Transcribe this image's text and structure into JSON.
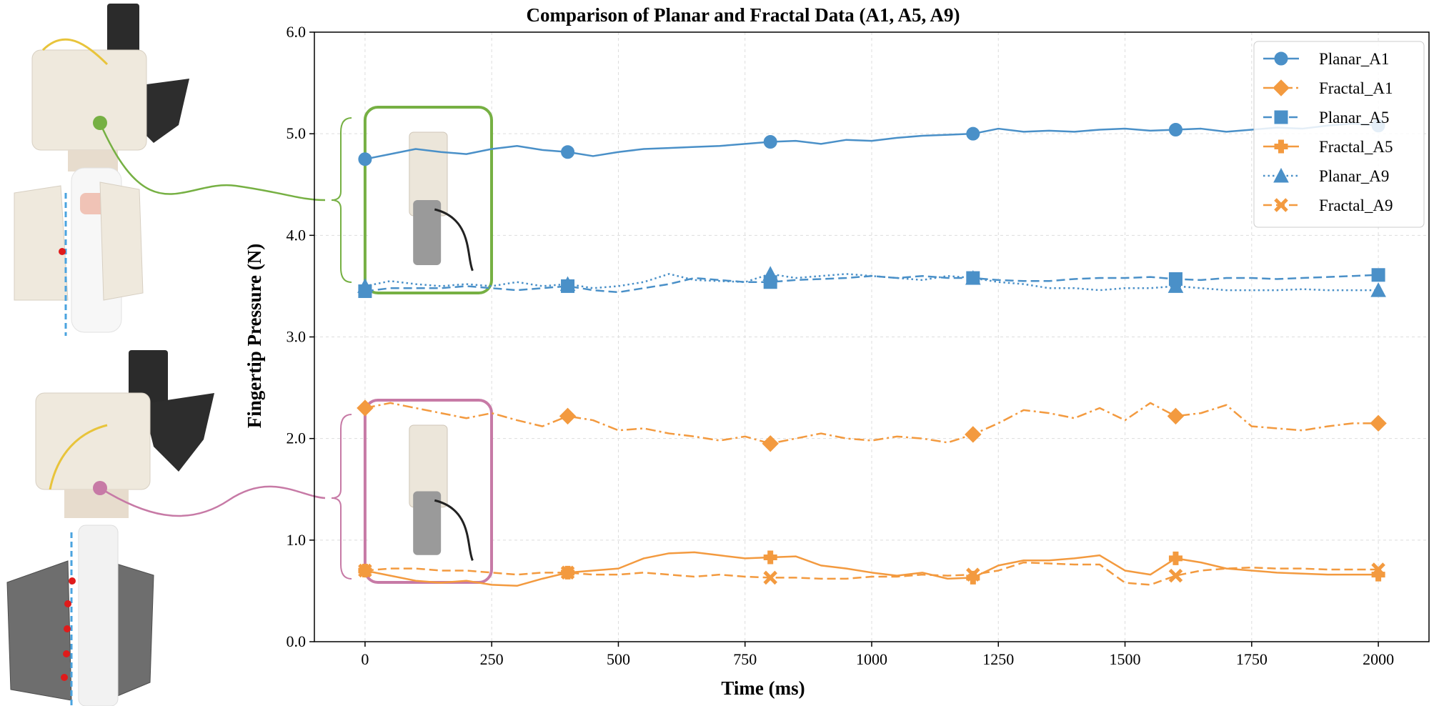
{
  "chart_data": {
    "type": "line",
    "title": "Comparison of Planar and Fractal Data (A1, A5, A9)",
    "xlabel": "Time (ms)",
    "ylabel": "Fingertip Pressure (N)",
    "xlim": [
      -100,
      2100
    ],
    "ylim": [
      0,
      6
    ],
    "x_ticks": [
      0,
      250,
      500,
      750,
      1000,
      1250,
      1500,
      1750,
      2000
    ],
    "y_ticks": [
      "0.0",
      "1.0",
      "2.0",
      "3.0",
      "4.0",
      "5.0",
      "6.0"
    ],
    "grid": true,
    "legend_position": "top-right",
    "marker_x": [
      0,
      400,
      800,
      1200,
      1600,
      2000
    ],
    "series": [
      {
        "name": "Planar_A1",
        "color": "#4a90c8",
        "linestyle": "solid",
        "marker": "circle",
        "x": [
          0,
          50,
          100,
          150,
          200,
          250,
          300,
          350,
          400,
          450,
          500,
          550,
          600,
          650,
          700,
          750,
          800,
          850,
          900,
          950,
          1000,
          1050,
          1100,
          1150,
          1200,
          1250,
          1300,
          1350,
          1400,
          1450,
          1500,
          1550,
          1600,
          1650,
          1700,
          1750,
          1800,
          1850,
          1900,
          1950,
          2000
        ],
        "values": [
          4.75,
          4.8,
          4.85,
          4.82,
          4.8,
          4.85,
          4.88,
          4.84,
          4.82,
          4.78,
          4.82,
          4.85,
          4.86,
          4.87,
          4.88,
          4.9,
          4.92,
          4.93,
          4.9,
          4.94,
          4.93,
          4.96,
          4.98,
          4.99,
          5.0,
          5.05,
          5.02,
          5.03,
          5.02,
          5.04,
          5.05,
          5.03,
          5.04,
          5.05,
          5.02,
          5.04,
          5.06,
          5.05,
          5.08,
          5.1,
          5.08
        ]
      },
      {
        "name": "Fractal_A1",
        "color": "#f39a3f",
        "linestyle": "dashdot",
        "marker": "diamond",
        "x": [
          0,
          50,
          100,
          150,
          200,
          250,
          300,
          350,
          400,
          450,
          500,
          550,
          600,
          650,
          700,
          750,
          800,
          850,
          900,
          950,
          1000,
          1050,
          1100,
          1150,
          1200,
          1250,
          1300,
          1350,
          1400,
          1450,
          1500,
          1550,
          1600,
          1650,
          1700,
          1750,
          1800,
          1850,
          1900,
          1950,
          2000
        ],
        "values": [
          2.3,
          2.35,
          2.3,
          2.25,
          2.2,
          2.25,
          2.18,
          2.12,
          2.22,
          2.18,
          2.08,
          2.1,
          2.05,
          2.02,
          1.98,
          2.02,
          1.95,
          2.0,
          2.05,
          2.0,
          1.98,
          2.02,
          2.0,
          1.96,
          2.04,
          2.15,
          2.28,
          2.25,
          2.2,
          2.3,
          2.18,
          2.35,
          2.22,
          2.25,
          2.33,
          2.12,
          2.1,
          2.08,
          2.12,
          2.15,
          2.15
        ]
      },
      {
        "name": "Planar_A5",
        "color": "#4a90c8",
        "linestyle": "dashed",
        "marker": "square",
        "x": [
          0,
          50,
          100,
          150,
          200,
          250,
          300,
          350,
          400,
          450,
          500,
          550,
          600,
          650,
          700,
          750,
          800,
          850,
          900,
          950,
          1000,
          1050,
          1100,
          1150,
          1200,
          1250,
          1300,
          1350,
          1400,
          1450,
          1500,
          1550,
          1600,
          1650,
          1700,
          1750,
          1800,
          1850,
          1900,
          1950,
          2000
        ],
        "values": [
          3.45,
          3.48,
          3.48,
          3.48,
          3.5,
          3.48,
          3.46,
          3.48,
          3.5,
          3.46,
          3.44,
          3.48,
          3.52,
          3.58,
          3.56,
          3.54,
          3.54,
          3.56,
          3.57,
          3.58,
          3.6,
          3.58,
          3.6,
          3.58,
          3.58,
          3.56,
          3.55,
          3.55,
          3.57,
          3.58,
          3.58,
          3.59,
          3.57,
          3.56,
          3.58,
          3.58,
          3.57,
          3.58,
          3.59,
          3.6,
          3.61
        ]
      },
      {
        "name": "Fractal_A5",
        "color": "#f39a3f",
        "linestyle": "solid",
        "marker": "plus",
        "x": [
          0,
          50,
          100,
          150,
          200,
          250,
          300,
          350,
          400,
          450,
          500,
          550,
          600,
          650,
          700,
          750,
          800,
          850,
          900,
          950,
          1000,
          1050,
          1100,
          1150,
          1200,
          1250,
          1300,
          1350,
          1400,
          1450,
          1500,
          1550,
          1600,
          1650,
          1700,
          1750,
          1800,
          1850,
          1900,
          1950,
          2000
        ],
        "values": [
          0.7,
          0.65,
          0.6,
          0.58,
          0.6,
          0.56,
          0.55,
          0.62,
          0.68,
          0.7,
          0.72,
          0.82,
          0.87,
          0.88,
          0.85,
          0.82,
          0.83,
          0.84,
          0.75,
          0.72,
          0.68,
          0.65,
          0.68,
          0.62,
          0.63,
          0.75,
          0.8,
          0.8,
          0.82,
          0.85,
          0.7,
          0.66,
          0.82,
          0.78,
          0.72,
          0.7,
          0.68,
          0.67,
          0.66,
          0.66,
          0.66
        ]
      },
      {
        "name": "Planar_A9",
        "color": "#4a90c8",
        "linestyle": "dotted",
        "marker": "triangle",
        "x": [
          0,
          50,
          100,
          150,
          200,
          250,
          300,
          350,
          400,
          450,
          500,
          550,
          600,
          650,
          700,
          750,
          800,
          850,
          900,
          950,
          1000,
          1050,
          1100,
          1150,
          1200,
          1250,
          1300,
          1350,
          1400,
          1450,
          1500,
          1550,
          1600,
          1650,
          1700,
          1750,
          1800,
          1850,
          1900,
          1950,
          2000
        ],
        "values": [
          3.5,
          3.55,
          3.52,
          3.5,
          3.52,
          3.5,
          3.54,
          3.5,
          3.52,
          3.48,
          3.5,
          3.54,
          3.62,
          3.56,
          3.55,
          3.54,
          3.62,
          3.58,
          3.6,
          3.62,
          3.6,
          3.58,
          3.56,
          3.6,
          3.58,
          3.54,
          3.52,
          3.48,
          3.48,
          3.46,
          3.48,
          3.48,
          3.5,
          3.48,
          3.46,
          3.46,
          3.46,
          3.47,
          3.46,
          3.46,
          3.46
        ]
      },
      {
        "name": "Fractal_A9",
        "color": "#f39a3f",
        "linestyle": "dashed",
        "marker": "x",
        "x": [
          0,
          50,
          100,
          150,
          200,
          250,
          300,
          350,
          400,
          450,
          500,
          550,
          600,
          650,
          700,
          750,
          800,
          850,
          900,
          950,
          1000,
          1050,
          1100,
          1150,
          1200,
          1250,
          1300,
          1350,
          1400,
          1450,
          1500,
          1550,
          1600,
          1650,
          1700,
          1750,
          1800,
          1850,
          1900,
          1950,
          2000
        ],
        "values": [
          0.7,
          0.72,
          0.72,
          0.7,
          0.7,
          0.68,
          0.66,
          0.68,
          0.68,
          0.66,
          0.66,
          0.68,
          0.66,
          0.64,
          0.66,
          0.64,
          0.63,
          0.63,
          0.62,
          0.62,
          0.64,
          0.64,
          0.66,
          0.65,
          0.66,
          0.7,
          0.78,
          0.77,
          0.76,
          0.76,
          0.58,
          0.56,
          0.65,
          0.7,
          0.72,
          0.73,
          0.72,
          0.72,
          0.71,
          0.71,
          0.71
        ]
      }
    ]
  },
  "photos": {
    "planar": {
      "accent": "#76b043"
    },
    "fractal": {
      "accent": "#c77aa6"
    }
  }
}
